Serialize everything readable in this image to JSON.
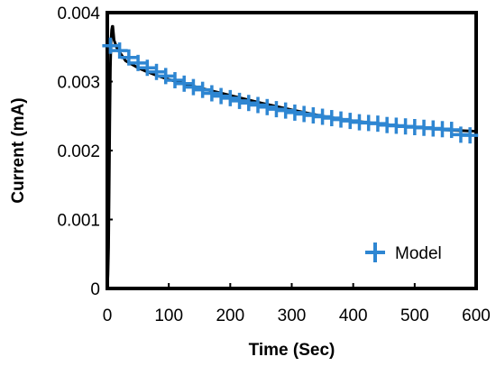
{
  "chart_data": {
    "type": "scatter",
    "xlabel": "Time (Sec)",
    "ylabel": "Current (mA)",
    "xlim": [
      0,
      600
    ],
    "ylim": [
      0,
      0.004
    ],
    "x_ticks": [
      0,
      100,
      200,
      300,
      400,
      500,
      600
    ],
    "x_tick_labels": [
      "0",
      "100",
      "200",
      "300",
      "400",
      "500",
      "600"
    ],
    "y_ticks": [
      0,
      0.001,
      0.002,
      0.003,
      0.004
    ],
    "y_tick_labels": [
      "0",
      "0.001",
      "0.002",
      "0.003",
      "0.004"
    ],
    "grid": false,
    "legend_position": "bottom-right",
    "series": [
      {
        "name": "Model",
        "marker": "plus",
        "color": "#2E86D2",
        "x": [
          5,
          20,
          35,
          50,
          65,
          80,
          95,
          110,
          125,
          140,
          155,
          170,
          185,
          200,
          215,
          230,
          245,
          260,
          275,
          290,
          305,
          320,
          335,
          350,
          365,
          380,
          395,
          410,
          425,
          440,
          455,
          470,
          485,
          500,
          515,
          530,
          545,
          560,
          575,
          590
        ],
        "y": [
          0.00352,
          0.00345,
          0.00335,
          0.00327,
          0.0032,
          0.00314,
          0.00308,
          0.00302,
          0.00297,
          0.00292,
          0.00288,
          0.00283,
          0.00279,
          0.00276,
          0.00272,
          0.00269,
          0.00266,
          0.00263,
          0.0026,
          0.00258,
          0.00255,
          0.00253,
          0.00251,
          0.00249,
          0.00247,
          0.00245,
          0.00243,
          0.00241,
          0.0024,
          0.00239,
          0.00237,
          0.00236,
          0.00235,
          0.00234,
          0.00233,
          0.00232,
          0.00231,
          0.0023,
          0.00223,
          0.00222
        ]
      },
      {
        "name": "",
        "marker": "line",
        "color": "#000000",
        "x": [
          0,
          1,
          2,
          3,
          4,
          5,
          6,
          7,
          8,
          9,
          10,
          11,
          13,
          15,
          18,
          22,
          26,
          30,
          40,
          50,
          60,
          80,
          100,
          120,
          150,
          200,
          250,
          300,
          350,
          400,
          450,
          500,
          550,
          600
        ],
        "y": [
          0,
          0.0002,
          0.0006,
          0.0014,
          0.0024,
          0.0032,
          0.0036,
          0.00375,
          0.0038,
          0.0038,
          0.0037,
          0.0036,
          0.00355,
          0.0035,
          0.00345,
          0.0034,
          0.00335,
          0.0033,
          0.00325,
          0.0032,
          0.00316,
          0.00309,
          0.00303,
          0.00298,
          0.00291,
          0.0028,
          0.00269,
          0.00259,
          0.0025,
          0.00243,
          0.00238,
          0.00234,
          0.0023,
          0.00228
        ]
      }
    ]
  }
}
